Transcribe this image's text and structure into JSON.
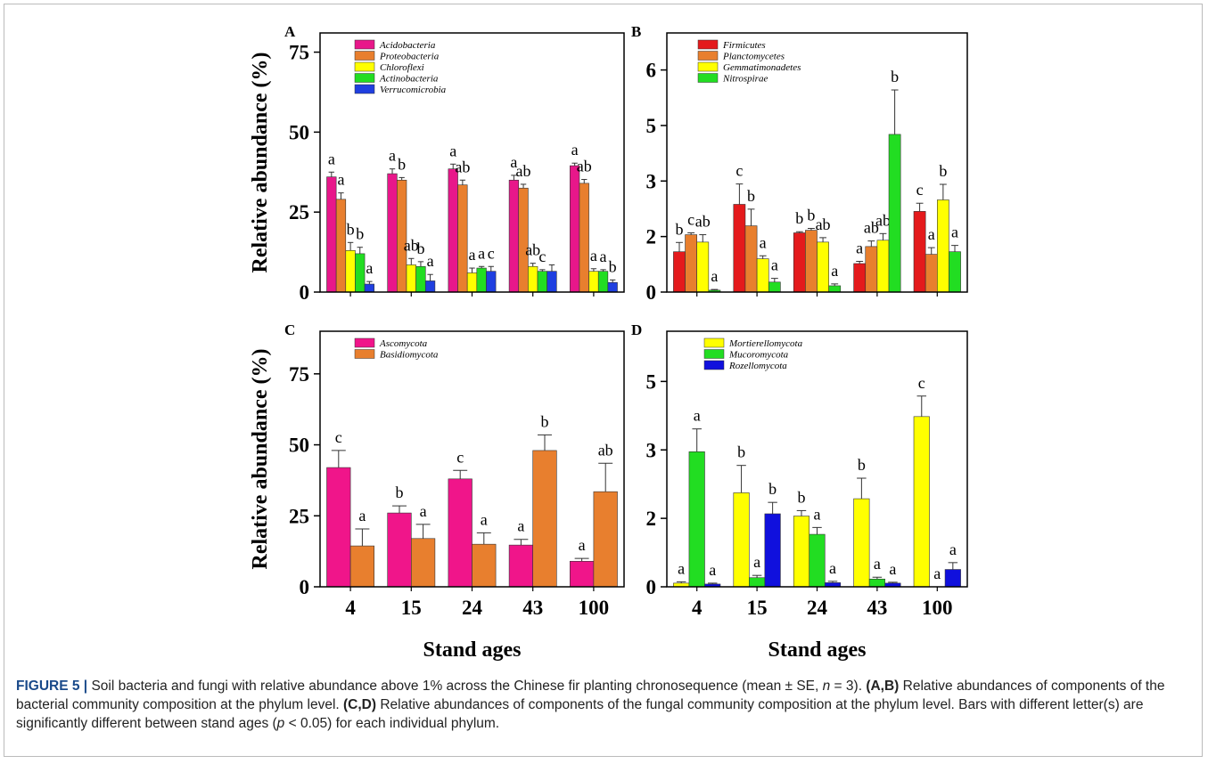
{
  "chart_data": [
    {
      "type": "bar",
      "panel_label": "A",
      "ylabel": "Relative abundance (%)",
      "categories": [
        null,
        null,
        null,
        null,
        null
      ],
      "ylim": [
        0,
        81
      ],
      "yticks": [
        0,
        25,
        50,
        75
      ],
      "series": [
        {
          "name": "Acidobacteria",
          "color": "#e8178a",
          "values": [
            36,
            37,
            38.5,
            35,
            39.5
          ],
          "errors": [
            1.5,
            1.5,
            1.5,
            1.5,
            0.8
          ],
          "letters": [
            "a",
            "a",
            "a",
            "a",
            "a"
          ]
        },
        {
          "name": "Proteobacteria",
          "color": "#e87f2e",
          "values": [
            29,
            35,
            33.5,
            32.5,
            34
          ],
          "errors": [
            2,
            0.8,
            1.5,
            1.2,
            1.2
          ],
          "letters": [
            "a",
            "b",
            "ab",
            "ab",
            "ab"
          ]
        },
        {
          "name": "Chloroflexi",
          "color": "#ffff00",
          "values": [
            13,
            8.5,
            6,
            8,
            6.5
          ],
          "errors": [
            2.5,
            2,
            1.5,
            1,
            0.8
          ],
          "letters": [
            "b",
            "ab",
            "a",
            "ab",
            "a"
          ]
        },
        {
          "name": "Actinobacteria",
          "color": "#22dd22",
          "values": [
            12,
            8,
            7.5,
            6.5,
            6.5
          ],
          "errors": [
            2,
            1.5,
            0.5,
            0.5,
            0.5
          ],
          "letters": [
            "b",
            "b",
            "a",
            "c",
            "a"
          ]
        },
        {
          "name": "Verrucomicrobia",
          "color": "#1f3fe0",
          "values": [
            2.5,
            3.5,
            6.5,
            6.5,
            3
          ],
          "errors": [
            0.8,
            2,
            1.5,
            2,
            0.8
          ],
          "letters": [
            "a",
            "a",
            "c",
            null,
            "b"
          ]
        }
      ]
    },
    {
      "type": "bar",
      "panel_label": "B",
      "categories": [
        null,
        null,
        null,
        null,
        null
      ],
      "ylim": [
        0,
        7
      ],
      "yticks": [
        0,
        {
          "value": 1.5,
          "label": "2"
        },
        3,
        {
          "value": 4.5,
          "label": "5"
        },
        6
      ],
      "series": [
        {
          "name": "Firmicutes",
          "color": "#e41a1c",
          "values": [
            1.09,
            2.37,
            1.6,
            0.77,
            2.18
          ],
          "errors": [
            0.25,
            0.55,
            0.03,
            0.06,
            0.22
          ],
          "letters": [
            "b",
            "c",
            "b",
            "a",
            "c"
          ]
        },
        {
          "name": "Planctomycetes",
          "color": "#e87f2e",
          "values": [
            1.55,
            1.79,
            1.67,
            1.23,
            1.02
          ],
          "errors": [
            0.05,
            0.45,
            0.05,
            0.15,
            0.18
          ],
          "letters": [
            "c",
            "b",
            "b",
            "ab",
            "a"
          ]
        },
        {
          "name": "Gemmatimonadetes",
          "color": "#ffff00",
          "values": [
            1.35,
            0.9,
            1.35,
            1.4,
            2.49
          ],
          "errors": [
            0.2,
            0.08,
            0.12,
            0.18,
            0.42
          ],
          "letters": [
            "ab",
            "a",
            "ab",
            "ab",
            "b"
          ]
        },
        {
          "name": "Nitrospirae",
          "color": "#22dd22",
          "values": [
            0.05,
            0.27,
            0.17,
            4.26,
            1.09
          ],
          "errors": [
            0.02,
            0.1,
            0.05,
            1.2,
            0.17
          ],
          "letters": [
            "a",
            "a",
            "a",
            "b",
            "a"
          ]
        }
      ]
    },
    {
      "type": "bar",
      "panel_label": "C",
      "ylabel": "Relative abundance  (%)",
      "xlabel": "Stand ages",
      "categories": [
        "4",
        "15",
        "24",
        "43",
        "100"
      ],
      "ylim": [
        0,
        90
      ],
      "yticks": [
        0,
        25,
        50,
        75
      ],
      "series": [
        {
          "name": "Ascomycota",
          "color": "#f0158a",
          "values": [
            42,
            26,
            38,
            14.7,
            9
          ],
          "errors": [
            6,
            2.5,
            3,
            2,
            1
          ],
          "letters": [
            "c",
            "b",
            "c",
            "a",
            "a"
          ]
        },
        {
          "name": "Basidiomycota",
          "color": "#e87f2e",
          "values": [
            14.4,
            17,
            15,
            48,
            33.5
          ],
          "errors": [
            6,
            5,
            4,
            5.5,
            10
          ],
          "letters": [
            "a",
            "a",
            "a",
            "b",
            "ab"
          ]
        }
      ]
    },
    {
      "type": "bar",
      "panel_label": "D",
      "xlabel": "Stand ages",
      "categories": [
        "4",
        "15",
        "24",
        "43",
        "100"
      ],
      "ylim": [
        0,
        5.6
      ],
      "yticks": [
        0,
        {
          "value": 1.5,
          "label": "2"
        },
        3,
        {
          "value": 4.5,
          "label": "5"
        }
      ],
      "series": [
        {
          "name": "Mortierellomycota",
          "color": "#ffff00",
          "values": [
            0.08,
            2.06,
            1.55,
            1.93,
            3.73
          ],
          "errors": [
            0.03,
            0.6,
            0.12,
            0.45,
            0.45
          ],
          "letters": [
            "a",
            "b",
            "b",
            "b",
            "c"
          ]
        },
        {
          "name": "Mucoromycota",
          "color": "#22dd22",
          "values": [
            2.96,
            0.2,
            1.15,
            0.17,
            0
          ],
          "errors": [
            0.5,
            0.05,
            0.15,
            0.04,
            0
          ],
          "letters": [
            "a",
            "a",
            "a",
            "a",
            "a"
          ]
        },
        {
          "name": "Rozellomycota",
          "color": "#1010dd",
          "values": [
            0.06,
            1.6,
            0.09,
            0.08,
            0.38
          ],
          "errors": [
            0.02,
            0.25,
            0.03,
            0.02,
            0.15
          ],
          "letters": [
            "a",
            "b",
            "a",
            "a",
            "a"
          ]
        }
      ]
    }
  ],
  "caption": [
    "FIGURE 5 |",
    " Soil bacteria and fungi with relative abundance above 1% across the Chinese fir planting chronosequence (mean ± SE, ",
    "n",
    " = 3). ",
    "(A,B)",
    " Relative abundances of components of the bacterial community composition at the phylum level. ",
    "(C,D)",
    " Relative abundances of components of the fungal community composition at the phylum level. Bars with different letter(s) are significantly different between stand ages (",
    "p",
    " < 0.05) for each individual phylum."
  ]
}
